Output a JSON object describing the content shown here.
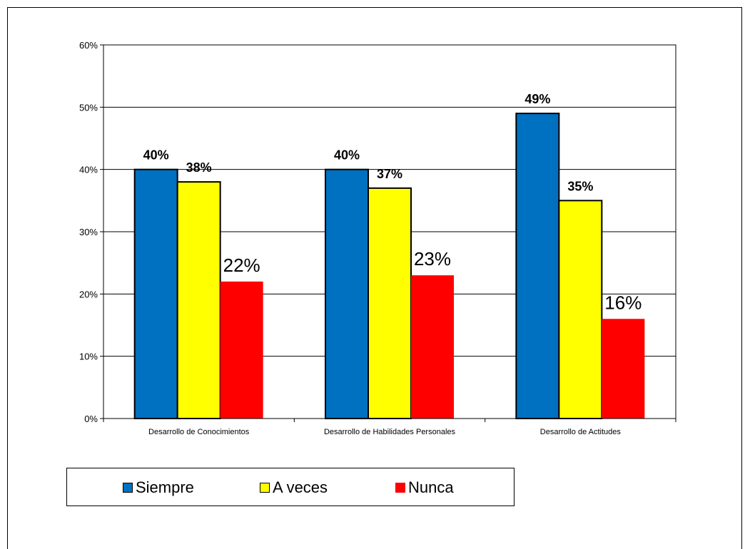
{
  "chart_data": {
    "type": "bar",
    "categories": [
      "Desarrollo de Conocimientos",
      "Desarrollo de Habilidades Personales",
      "Desarrollo de Actitudes"
    ],
    "series": [
      {
        "name": "Siempre",
        "values": [
          40,
          40,
          49
        ],
        "labels": [
          "40%",
          "40%",
          "49%"
        ],
        "color": "#0070C0"
      },
      {
        "name": "A veces",
        "values": [
          38,
          37,
          35
        ],
        "labels": [
          "38%",
          "37%",
          "35%"
        ],
        "color": "#FFFF00"
      },
      {
        "name": "Nunca",
        "values": [
          22,
          23,
          16
        ],
        "labels": [
          "22%",
          "23%",
          "16%"
        ],
        "color": "#FF0000"
      }
    ],
    "y_ticks": [
      "0%",
      "10%",
      "20%",
      "30%",
      "40%",
      "50%",
      "60%"
    ],
    "ylim": [
      0,
      60
    ],
    "grid": true,
    "legend_position": "bottom-left"
  }
}
